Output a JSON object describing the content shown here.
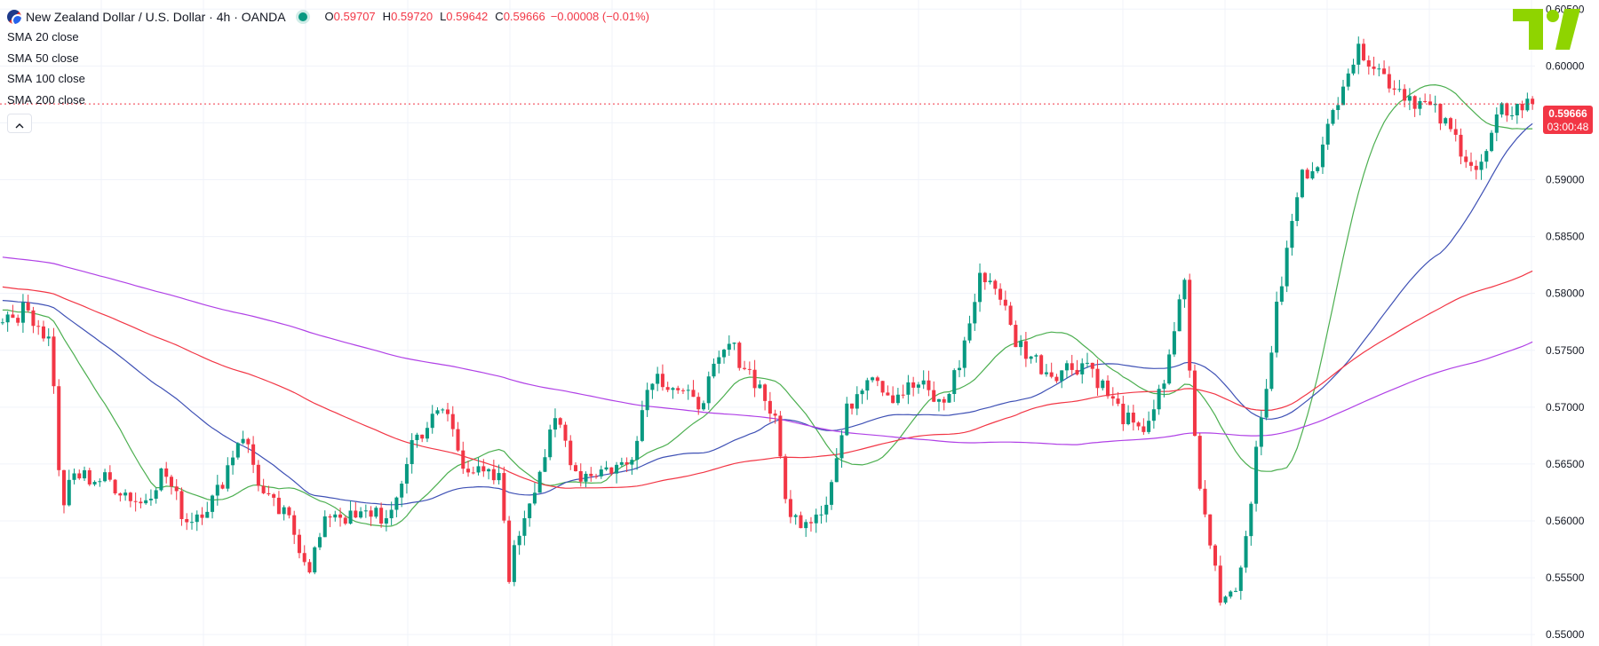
{
  "header": {
    "title": "New Zealand Dollar / U.S. Dollar · 4h · OANDA",
    "open_key": "O",
    "open": "0.59707",
    "high_key": "H",
    "high": "0.59720",
    "low_key": "L",
    "low": "0.59642",
    "close_key": "C",
    "close": "0.59666",
    "change": "−0.00008 (−0.01%)"
  },
  "indicators": [
    {
      "name": "SMA",
      "param": "20 close",
      "color": "#4caf50"
    },
    {
      "name": "SMA",
      "param": "50 close",
      "color": "#3f51b5"
    },
    {
      "name": "SMA",
      "param": "100 close",
      "color": "#f23645"
    },
    {
      "name": "SMA",
      "param": "200 close",
      "color": "#b041e6"
    }
  ],
  "collapse_icon": "chevron-up-icon",
  "logo": {
    "text": "TV",
    "color": "#8fd400"
  },
  "price_tag": {
    "price": "0.59666",
    "countdown": "03:00:48",
    "color": "#f23645"
  },
  "colors": {
    "up": "#089981",
    "down": "#f23645",
    "grid": "#f0f3fa"
  },
  "chart_data": {
    "type": "candlestick",
    "title": "New Zealand Dollar / U.S. Dollar · 4h · OANDA",
    "price_axis": {
      "ticks": [
        "0.60500",
        "0.60000",
        "0.59500",
        "0.59000",
        "0.58500",
        "0.58000",
        "0.57500",
        "0.57000",
        "0.56500",
        "0.56000",
        "0.55500",
        "0.55000"
      ],
      "ylim": [
        0.549,
        0.6058
      ],
      "last_price": 0.59666
    },
    "grid": true,
    "candle_count": 300,
    "price_path": [
      [
        0,
        0.578
      ],
      [
        12,
        0.5785
      ],
      [
        22,
        0.5755
      ],
      [
        26,
        0.561
      ],
      [
        32,
        0.564
      ],
      [
        48,
        0.5635
      ],
      [
        62,
        0.5615
      ],
      [
        72,
        0.5645
      ],
      [
        82,
        0.56
      ],
      [
        95,
        0.562
      ],
      [
        107,
        0.568
      ],
      [
        117,
        0.562
      ],
      [
        128,
        0.56
      ],
      [
        137,
        0.556
      ],
      [
        147,
        0.561
      ],
      [
        157,
        0.56
      ],
      [
        167,
        0.561
      ],
      [
        173,
        0.5595
      ],
      [
        183,
        0.567
      ],
      [
        198,
        0.57
      ],
      [
        205,
        0.5655
      ],
      [
        213,
        0.564
      ],
      [
        223,
        0.5635
      ],
      [
        226,
        0.555
      ],
      [
        233,
        0.5605
      ],
      [
        248,
        0.569
      ],
      [
        257,
        0.564
      ],
      [
        268,
        0.5645
      ],
      [
        280,
        0.565
      ],
      [
        290,
        0.573
      ],
      [
        300,
        0.572
      ],
      [
        310,
        0.57
      ],
      [
        325,
        0.5755
      ],
      [
        338,
        0.572
      ],
      [
        345,
        0.569
      ],
      [
        352,
        0.56
      ],
      [
        362,
        0.5605
      ],
      [
        369,
        0.562
      ],
      [
        378,
        0.57
      ],
      [
        388,
        0.5735
      ],
      [
        397,
        0.571
      ],
      [
        410,
        0.572
      ],
      [
        420,
        0.57
      ],
      [
        428,
        0.574
      ],
      [
        438,
        0.582
      ],
      [
        446,
        0.58
      ],
      [
        452,
        0.576
      ],
      [
        468,
        0.573
      ],
      [
        485,
        0.574
      ],
      [
        496,
        0.5705
      ],
      [
        508,
        0.5675
      ],
      [
        520,
        0.572
      ],
      [
        528,
        0.582
      ],
      [
        534,
        0.564
      ],
      [
        545,
        0.553
      ],
      [
        553,
        0.555
      ],
      [
        560,
        0.565
      ],
      [
        570,
        0.579
      ],
      [
        580,
        0.59
      ],
      [
        590,
        0.5925
      ],
      [
        600,
        0.5995
      ],
      [
        608,
        0.6015
      ],
      [
        618,
        0.599
      ],
      [
        628,
        0.5975
      ],
      [
        640,
        0.596
      ],
      [
        650,
        0.5935
      ],
      [
        660,
        0.5905
      ],
      [
        670,
        0.596
      ],
      [
        684,
        0.5967
      ]
    ]
  }
}
